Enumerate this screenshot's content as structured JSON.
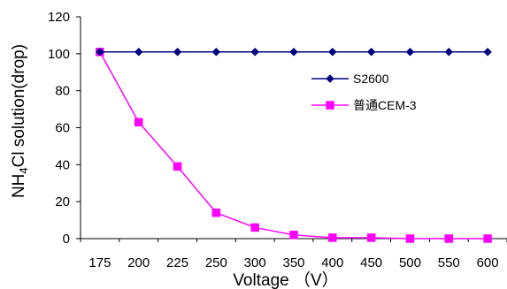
{
  "chart_data": {
    "type": "line",
    "title": "",
    "xlabel": "Voltage （V）",
    "ylabel_parts": [
      "NH",
      "4",
      "Cl solution(drop)"
    ],
    "categories": [
      "175",
      "200",
      "225",
      "250",
      "300",
      "350",
      "400",
      "450",
      "500",
      "550",
      "600"
    ],
    "ylim": [
      0,
      120
    ],
    "yticks": [
      "0",
      "20",
      "40",
      "60",
      "80",
      "100",
      "120"
    ],
    "grid": false,
    "legend_position": "right-center",
    "series": [
      {
        "name": "S2600",
        "color": "#000080",
        "marker": "diamond",
        "values": [
          101,
          101,
          101,
          101,
          101,
          101,
          101,
          101,
          101,
          101,
          101
        ]
      },
      {
        "name": "普通CEM-3",
        "color": "#ff00ff",
        "marker": "square",
        "values": [
          101,
          63,
          39,
          14,
          6,
          2,
          0.5,
          0.5,
          0,
          0,
          0
        ]
      }
    ]
  }
}
